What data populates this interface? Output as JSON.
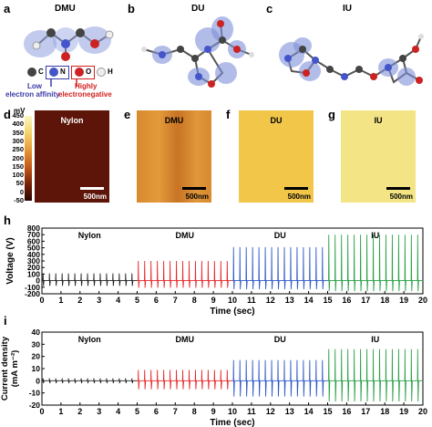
{
  "panel_a": {
    "letter": "a",
    "title": "DMU"
  },
  "panel_b": {
    "letter": "b",
    "title": "DU"
  },
  "panel_c": {
    "letter": "c",
    "title": "IU"
  },
  "legend": {
    "atoms": [
      "C",
      "N",
      "O",
      "H"
    ],
    "low_line1": "Low",
    "low_line2": "electron affinity",
    "high_line1": "Highly",
    "high_line2": "electronegative",
    "low_color": "#3a3aa8",
    "high_color": "#d42020"
  },
  "colorbar": {
    "unit": "mV",
    "ticks": [
      "450",
      "400",
      "350",
      "300",
      "250",
      "200",
      "150",
      "100",
      "50",
      "0",
      "-50"
    ],
    "min": -50,
    "max": 450
  },
  "maps": [
    {
      "letter": "d",
      "title": "Nylon",
      "scale": "500nm",
      "color": "#5c1508"
    },
    {
      "letter": "e",
      "title": "DMU",
      "scale": "500nm",
      "color": "#d9892e"
    },
    {
      "letter": "f",
      "title": "DU",
      "scale": "500nm",
      "color": "#f2c649"
    },
    {
      "letter": "g",
      "title": "IU",
      "scale": "500nm",
      "color": "#f3e585"
    }
  ],
  "panel_h": {
    "letter": "h"
  },
  "panel_i": {
    "letter": "i"
  },
  "chart_data": [
    {
      "type": "line",
      "ylabel": "Voltage (V)",
      "xlabel": "Time (sec)",
      "xlim": [
        0,
        20
      ],
      "ylim": [
        -200,
        800
      ],
      "xticks": [
        "0",
        "1",
        "2",
        "3",
        "4",
        "5",
        "6",
        "7",
        "8",
        "9",
        "10",
        "11",
        "12",
        "13",
        "14",
        "15",
        "16",
        "17",
        "18",
        "19",
        "20"
      ],
      "yticks": [
        "800",
        "700",
        "600",
        "500",
        "400",
        "300",
        "200",
        "100",
        "0",
        "-100",
        "-200"
      ],
      "series": [
        {
          "name": "Nylon",
          "color": "#222222",
          "x_start": 0,
          "x_end": 5,
          "peak": 110,
          "trough": -80
        },
        {
          "name": "DMU",
          "color": "#e8272a",
          "x_start": 5,
          "x_end": 10,
          "peak": 300,
          "trough": -110
        },
        {
          "name": "DU",
          "color": "#2f59c7",
          "x_start": 10,
          "x_end": 15,
          "peak": 510,
          "trough": -130
        },
        {
          "name": "IU",
          "color": "#2aa147",
          "x_start": 15,
          "x_end": 20,
          "peak": 700,
          "trough": -160
        }
      ]
    },
    {
      "type": "line",
      "ylabel": "Current density (mA m⁻²)",
      "ylabel_line1": "Current density",
      "ylabel_line2": "(mA m⁻²)",
      "xlabel": "Time (sec)",
      "xlim": [
        0,
        20
      ],
      "ylim": [
        -20,
        40
      ],
      "xticks": [
        "0",
        "1",
        "2",
        "3",
        "4",
        "5",
        "6",
        "7",
        "8",
        "9",
        "10",
        "11",
        "12",
        "13",
        "14",
        "15",
        "16",
        "17",
        "18",
        "19",
        "20"
      ],
      "yticks": [
        "40",
        "30",
        "20",
        "10",
        "0",
        "-10",
        "-20"
      ],
      "series": [
        {
          "name": "Nylon",
          "color": "#222222",
          "x_start": 0,
          "x_end": 5,
          "peak": 2,
          "trough": -2
        },
        {
          "name": "DMU",
          "color": "#e8272a",
          "x_start": 5,
          "x_end": 10,
          "peak": 9,
          "trough": -7
        },
        {
          "name": "DU",
          "color": "#2f59c7",
          "x_start": 10,
          "x_end": 15,
          "peak": 17,
          "trough": -13
        },
        {
          "name": "IU",
          "color": "#2aa147",
          "x_start": 15,
          "x_end": 20,
          "peak": 26,
          "trough": -17
        }
      ]
    }
  ]
}
